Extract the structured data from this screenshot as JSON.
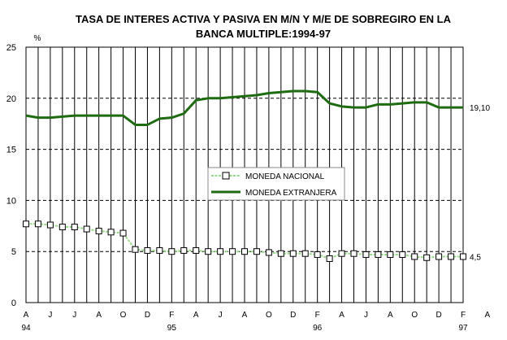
{
  "chart_data": {
    "type": "line",
    "title_line1": "TASA DE INTERES ACTIVA Y PASIVA EN M/N Y M/E DE SOBREGIRO EN LA",
    "title_line2": "BANCA MULTIPLE:1994-97",
    "y_unit": "%",
    "ylim": [
      0,
      25
    ],
    "yticks": [
      "0",
      "5",
      "10",
      "15",
      "20",
      "25"
    ],
    "x_month_labels": [
      "A",
      "J",
      "J",
      "A",
      "O",
      "D",
      "F",
      "A",
      "J",
      "A",
      "O",
      "D",
      "F",
      "A",
      "J",
      "A",
      "O",
      "D",
      "F",
      "A"
    ],
    "x_year_labels": [
      {
        "label": "94",
        "at_index": 0
      },
      {
        "label": "95",
        "at_index": 12
      },
      {
        "label": "96",
        "at_index": 24
      },
      {
        "label": "97",
        "at_index": 36
      }
    ],
    "grid": "vertical solid, horizontal dashed",
    "legend_placement": "center",
    "series": [
      {
        "name": "MONEDA NACIONAL",
        "color": "#99d98a",
        "marker": "square",
        "end_label": "4,5",
        "values": [
          7.7,
          7.7,
          7.6,
          7.4,
          7.4,
          7.2,
          7.0,
          6.9,
          6.8,
          5.2,
          5.1,
          5.1,
          5.0,
          5.1,
          5.1,
          5.0,
          5.0,
          5.0,
          5.0,
          5.0,
          4.9,
          4.8,
          4.8,
          4.8,
          4.7,
          4.3,
          4.8,
          4.8,
          4.7,
          4.7,
          4.7,
          4.7,
          4.5,
          4.4,
          4.5,
          4.5,
          4.5
        ]
      },
      {
        "name": "MONEDA EXTRANJERA",
        "color": "#1e6b12",
        "marker": "none",
        "end_label": "19,10",
        "values": [
          18.3,
          18.1,
          18.1,
          18.2,
          18.3,
          18.3,
          18.3,
          18.3,
          18.3,
          17.4,
          17.4,
          18.0,
          18.1,
          18.5,
          19.8,
          20.0,
          20.0,
          20.1,
          20.2,
          20.3,
          20.5,
          20.6,
          20.7,
          20.7,
          20.6,
          19.5,
          19.2,
          19.1,
          19.1,
          19.4,
          19.4,
          19.5,
          19.6,
          19.6,
          19.1,
          19.1,
          19.1
        ]
      }
    ]
  }
}
